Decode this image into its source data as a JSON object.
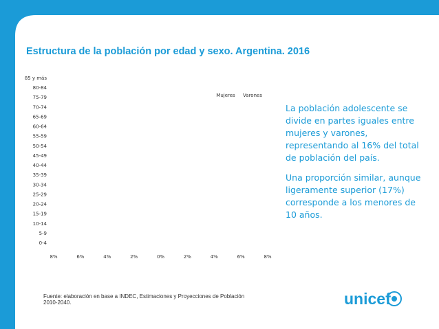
{
  "chart_data": {
    "type": "pyramid",
    "title": "Estructura de la población por edad y sexo. Argentina. 2016",
    "categories": [
      "0-4",
      "5-9",
      "10-14",
      "15-19",
      "20-24",
      "25-29",
      "30-34",
      "35-39",
      "40-44",
      "45-49",
      "50-54",
      "55-59",
      "60-64",
      "65-69",
      "70-74",
      "75-79",
      "80-84",
      "85 y más"
    ],
    "series": [
      {
        "name": "Mujeres"
      },
      {
        "name": "Varones"
      }
    ],
    "xlim": [
      -8,
      8
    ],
    "xticks": [
      {
        "value": -8,
        "label": "8%"
      },
      {
        "value": -6,
        "label": "6%"
      },
      {
        "value": -4,
        "label": "4%"
      },
      {
        "value": -2,
        "label": "2%"
      },
      {
        "value": 0,
        "label": "0%"
      },
      {
        "value": 2,
        "label": "2%"
      },
      {
        "value": 4,
        "label": "4%"
      },
      {
        "value": 6,
        "label": "6%"
      },
      {
        "value": 8,
        "label": "8%"
      }
    ]
  },
  "notes": [
    "La población adolescente se divide en partes iguales entre mujeres y varones, representando al 16% del total de población del país.",
    "Una proporción similar, aunque ligeramente superior (17%) corresponde a los menores de 10 años."
  ],
  "source": "Fuente: elaboración en base a INDEC, Estimaciones y Proyecciones de Población 2010-2040.",
  "logo": "unicef"
}
